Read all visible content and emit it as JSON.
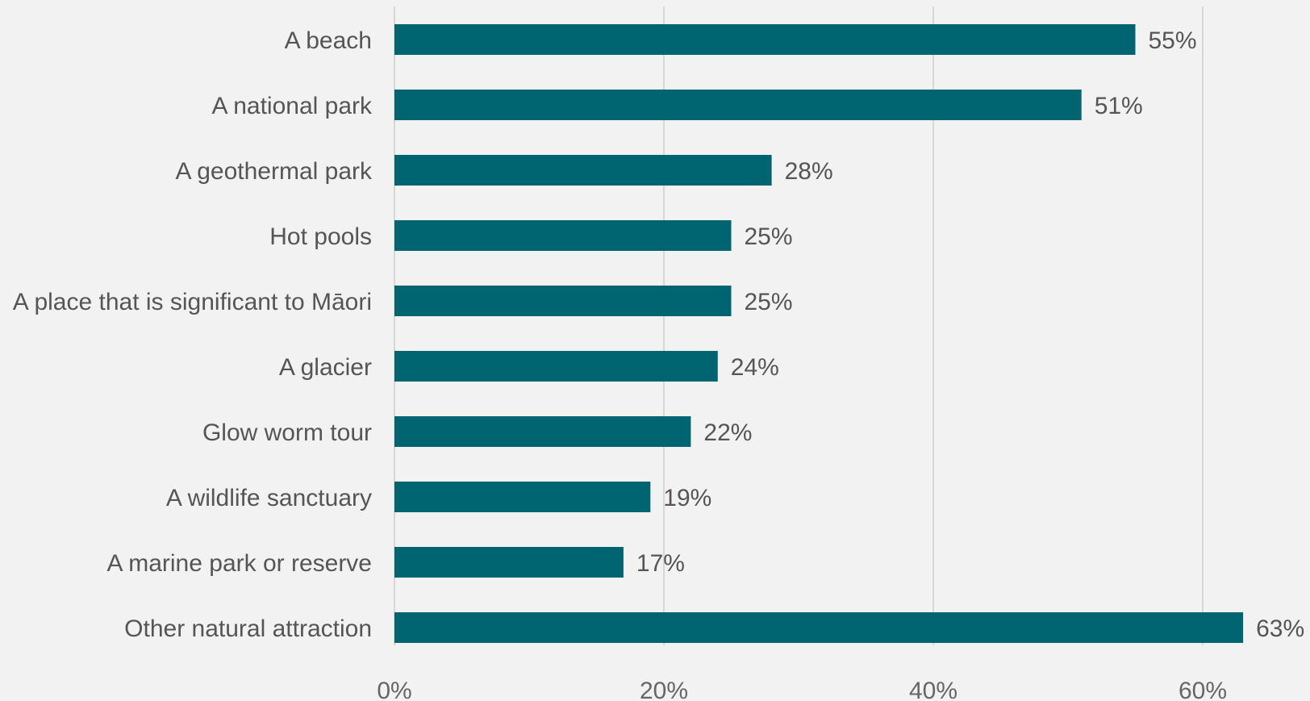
{
  "chart_data": {
    "type": "bar",
    "orientation": "horizontal",
    "title": "",
    "xlabel": "",
    "ylabel": "",
    "categories": [
      "A beach",
      "A national park",
      "A geothermal park",
      "Hot pools",
      "A place that is significant to Māori",
      "A glacier",
      "Glow worm tour",
      "A wildlife sanctuary",
      "A marine park or reserve",
      "Other natural attraction"
    ],
    "values": [
      55,
      51,
      28,
      25,
      25,
      24,
      22,
      19,
      17,
      63
    ],
    "value_labels": [
      "55%",
      "51%",
      "28%",
      "25%",
      "25%",
      "24%",
      "22%",
      "19%",
      "17%",
      "63%"
    ],
    "x_ticks": [
      0,
      20,
      40,
      60
    ],
    "x_tick_labels": [
      "0%",
      "20%",
      "40%",
      "60%"
    ],
    "xlim": [
      0,
      63
    ],
    "grid": true,
    "legend": "none",
    "colors": {
      "bar": "#006570",
      "background": "#f2f2f2",
      "grid": "#d6d6d6",
      "text": "#555555"
    }
  }
}
